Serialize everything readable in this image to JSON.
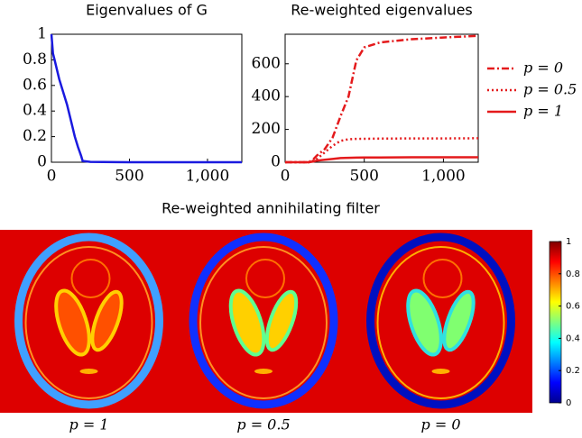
{
  "chart_data": [
    {
      "type": "line",
      "title": "Eigenvalues of G",
      "x": [
        0,
        10,
        20,
        50,
        100,
        130,
        150,
        170,
        190,
        200,
        250,
        500,
        1000,
        1220
      ],
      "series": [
        {
          "color": "#1a1adf",
          "dash": "solid",
          "values": [
            1,
            0.85,
            0.8,
            0.65,
            0.45,
            0.3,
            0.2,
            0.12,
            0.05,
            0.01,
            0.003,
            0,
            0,
            0
          ]
        }
      ],
      "xlim": [
        0,
        1220
      ],
      "xticks": [
        0,
        500,
        {
          "value": 1000,
          "label": "1,000"
        }
      ],
      "ylim": [
        0,
        1
      ],
      "yticks": [
        0,
        0.2,
        0.4,
        0.6,
        0.8,
        1
      ]
    },
    {
      "type": "line",
      "title": "Re-weighted eigenvalues",
      "x": [
        0,
        150,
        180,
        200,
        250,
        300,
        350,
        400,
        450,
        500,
        600,
        800,
        1000,
        1220
      ],
      "series": [
        {
          "name": "p = 0",
          "color": "#e41a1c",
          "dash": "dashdot",
          "values": [
            0,
            0,
            20,
            40,
            80,
            150,
            280,
            400,
            620,
            700,
            730,
            750,
            760,
            770
          ]
        },
        {
          "name": "p = 0.5",
          "color": "#e41a1c",
          "dash": "dotted",
          "values": [
            0,
            0,
            10,
            20,
            60,
            100,
            130,
            140,
            142,
            143,
            144,
            145,
            145,
            146
          ]
        },
        {
          "name": "p = 1",
          "color": "#e41a1c",
          "dash": "solid",
          "values": [
            0,
            0,
            5,
            10,
            15,
            20,
            25,
            27,
            28,
            29,
            29,
            30,
            30,
            30
          ]
        }
      ],
      "xlim": [
        0,
        1220
      ],
      "xticks": [
        0,
        500,
        {
          "value": 1000,
          "label": "1,000"
        }
      ],
      "ylim": [
        0,
        780
      ],
      "yticks": [
        0,
        200,
        400,
        600
      ],
      "legend": "right"
    },
    {
      "type": "heatmap",
      "title": "Re-weighted annihilating filter",
      "panels": [
        "p = 1",
        "p = 0.5",
        "p = 0"
      ],
      "clim": [
        0,
        1
      ],
      "cticks": [
        0,
        0.2,
        0.4,
        0.6,
        0.8,
        1
      ]
    }
  ]
}
